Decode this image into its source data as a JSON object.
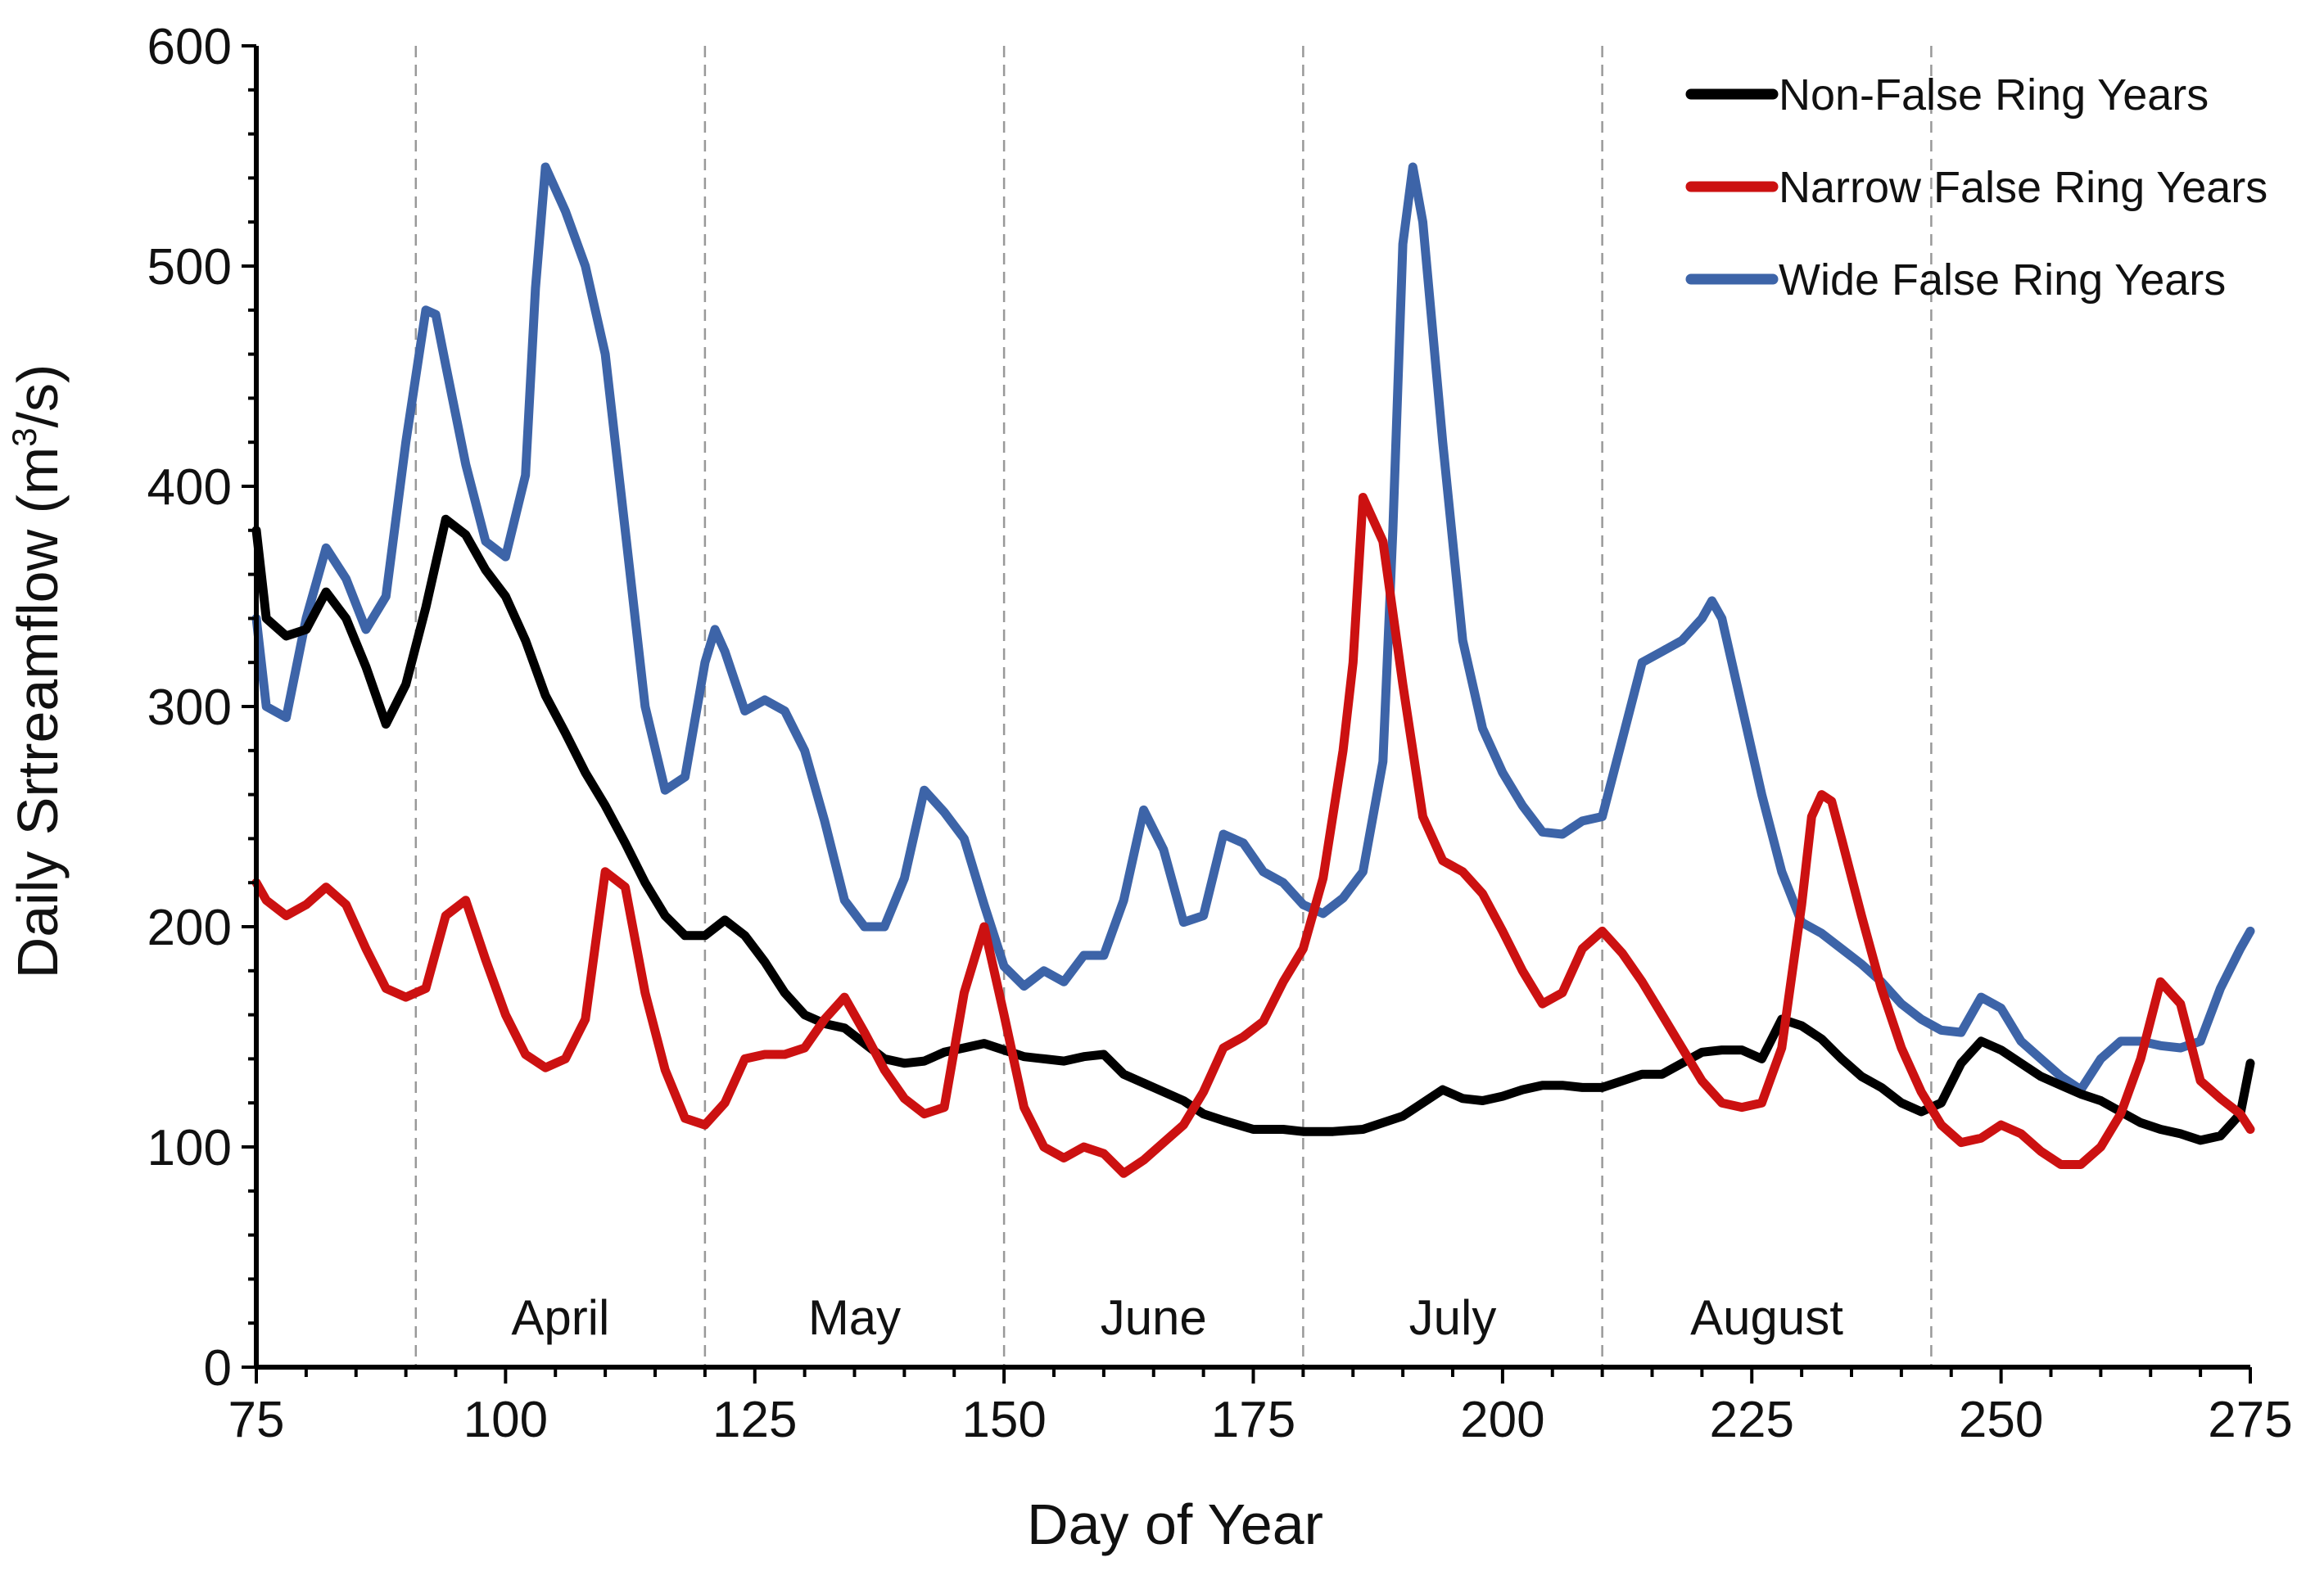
{
  "chart_data": {
    "type": "line",
    "title": "",
    "xlabel": "Day of Year",
    "ylabel_main": "Daily Srtreamflow (m",
    "ylabel_sup": "3",
    "ylabel_end": "/s)",
    "xlim": [
      75,
      275
    ],
    "ylim": [
      0,
      600
    ],
    "xticks": [
      75,
      100,
      125,
      150,
      175,
      200,
      225,
      250,
      275
    ],
    "yticks": [
      0,
      100,
      200,
      300,
      400,
      500,
      600
    ],
    "month_boundaries": [
      91,
      120,
      150,
      180,
      210,
      243
    ],
    "months": [
      {
        "name": "April",
        "x": 105.5
      },
      {
        "name": "May",
        "x": 135
      },
      {
        "name": "June",
        "x": 165
      },
      {
        "name": "July",
        "x": 195
      },
      {
        "name": "August",
        "x": 226.5
      }
    ],
    "legend_position": "top-right",
    "series": [
      {
        "name": "Non-False Ring Years",
        "color": "#000000",
        "x": [
          75,
          76,
          78,
          80,
          82,
          84,
          86,
          88,
          90,
          92,
          94,
          96,
          98,
          100,
          102,
          104,
          106,
          108,
          110,
          112,
          114,
          116,
          118,
          120,
          122,
          124,
          126,
          128,
          130,
          132,
          134,
          136,
          138,
          140,
          142,
          144,
          146,
          148,
          150,
          152,
          154,
          156,
          158,
          160,
          162,
          165,
          168,
          170,
          172,
          175,
          178,
          180,
          183,
          186,
          190,
          192,
          194,
          196,
          198,
          200,
          202,
          204,
          206,
          208,
          210,
          212,
          214,
          216,
          218,
          220,
          222,
          224,
          226,
          228,
          230,
          232,
          234,
          236,
          238,
          240,
          242,
          244,
          246,
          248,
          250,
          252,
          254,
          256,
          258,
          260,
          262,
          264,
          266,
          268,
          270,
          272,
          274,
          275
        ],
        "values": [
          380,
          340,
          332,
          335,
          352,
          340,
          318,
          292,
          310,
          345,
          385,
          378,
          362,
          350,
          330,
          305,
          288,
          270,
          255,
          238,
          220,
          205,
          196,
          196,
          203,
          196,
          184,
          170,
          160,
          156,
          154,
          147,
          140,
          138,
          139,
          143,
          145,
          147,
          144,
          141,
          140,
          139,
          141,
          142,
          133,
          127,
          121,
          115,
          112,
          108,
          108,
          107,
          107,
          108,
          114,
          120,
          126,
          122,
          121,
          123,
          126,
          128,
          128,
          127,
          127,
          130,
          133,
          133,
          138,
          143,
          144,
          144,
          140,
          158,
          155,
          149,
          140,
          132,
          127,
          120,
          116,
          120,
          138,
          148,
          144,
          138,
          132,
          128,
          124,
          121,
          116,
          111,
          108,
          106,
          103,
          105,
          115,
          138
        ]
      },
      {
        "name": "Narrow False Ring Years",
        "color": "#cc1111",
        "x": [
          75,
          76,
          78,
          80,
          82,
          84,
          86,
          88,
          90,
          92,
          94,
          96,
          98,
          100,
          102,
          104,
          106,
          108,
          110,
          112,
          114,
          116,
          118,
          120,
          122,
          124,
          126,
          128,
          130,
          132,
          134,
          136,
          138,
          140,
          142,
          144,
          146,
          148,
          150,
          152,
          154,
          156,
          158,
          160,
          162,
          164,
          166,
          168,
          170,
          172,
          174,
          176,
          178,
          180,
          182,
          184,
          185,
          186,
          188,
          190,
          192,
          194,
          196,
          198,
          200,
          202,
          204,
          206,
          208,
          210,
          212,
          214,
          216,
          218,
          220,
          222,
          224,
          226,
          228,
          230,
          231,
          232,
          233,
          234,
          236,
          238,
          240,
          242,
          244,
          246,
          248,
          250,
          252,
          254,
          256,
          258,
          260,
          262,
          264,
          266,
          268,
          270,
          272,
          274,
          275
        ],
        "values": [
          220,
          212,
          205,
          210,
          218,
          210,
          190,
          172,
          168,
          172,
          205,
          212,
          185,
          160,
          142,
          136,
          140,
          158,
          225,
          218,
          170,
          135,
          113,
          110,
          120,
          140,
          142,
          142,
          145,
          158,
          168,
          152,
          135,
          122,
          115,
          118,
          170,
          200,
          160,
          118,
          100,
          95,
          100,
          97,
          88,
          94,
          102,
          110,
          125,
          145,
          150,
          157,
          175,
          190,
          222,
          280,
          320,
          395,
          375,
          310,
          250,
          230,
          225,
          215,
          198,
          180,
          165,
          170,
          190,
          198,
          188,
          175,
          160,
          145,
          130,
          120,
          118,
          120,
          145,
          210,
          250,
          260,
          257,
          240,
          205,
          172,
          145,
          125,
          110,
          102,
          104,
          110,
          106,
          98,
          92,
          92,
          100,
          115,
          140,
          175,
          165,
          130,
          122,
          115,
          108
        ]
      },
      {
        "name": "Wide False Ring Years",
        "color": "#3d64a8",
        "x": [
          75,
          76,
          78,
          80,
          82,
          84,
          86,
          88,
          90,
          92,
          93,
          94,
          96,
          98,
          100,
          102,
          103,
          104,
          106,
          108,
          110,
          112,
          114,
          116,
          118,
          120,
          121,
          122,
          124,
          126,
          128,
          130,
          132,
          134,
          136,
          138,
          140,
          142,
          144,
          146,
          148,
          150,
          152,
          154,
          156,
          158,
          160,
          162,
          164,
          166,
          168,
          170,
          172,
          174,
          176,
          178,
          180,
          182,
          184,
          186,
          188,
          189,
          190,
          191,
          192,
          194,
          196,
          198,
          200,
          202,
          204,
          206,
          208,
          210,
          212,
          214,
          216,
          218,
          220,
          221,
          222,
          224,
          226,
          228,
          230,
          232,
          234,
          236,
          238,
          240,
          242,
          244,
          246,
          248,
          250,
          252,
          254,
          256,
          258,
          260,
          262,
          264,
          266,
          268,
          270,
          272,
          274,
          275
        ],
        "values": [
          340,
          300,
          295,
          340,
          372,
          358,
          335,
          350,
          420,
          480,
          478,
          455,
          410,
          375,
          368,
          405,
          490,
          545,
          525,
          500,
          460,
          380,
          300,
          262,
          268,
          320,
          335,
          325,
          298,
          303,
          298,
          280,
          248,
          212,
          200,
          200,
          222,
          262,
          252,
          240,
          210,
          182,
          173,
          180,
          175,
          187,
          187,
          212,
          253,
          235,
          202,
          205,
          242,
          238,
          225,
          220,
          210,
          206,
          213,
          225,
          275,
          380,
          510,
          545,
          520,
          420,
          330,
          290,
          270,
          255,
          243,
          242,
          248,
          250,
          285,
          320,
          325,
          330,
          340,
          348,
          340,
          300,
          260,
          225,
          202,
          197,
          190,
          183,
          175,
          165,
          158,
          153,
          152,
          168,
          163,
          148,
          140,
          132,
          126,
          140,
          148,
          148,
          146,
          145,
          148,
          172,
          190,
          198
        ]
      }
    ]
  }
}
